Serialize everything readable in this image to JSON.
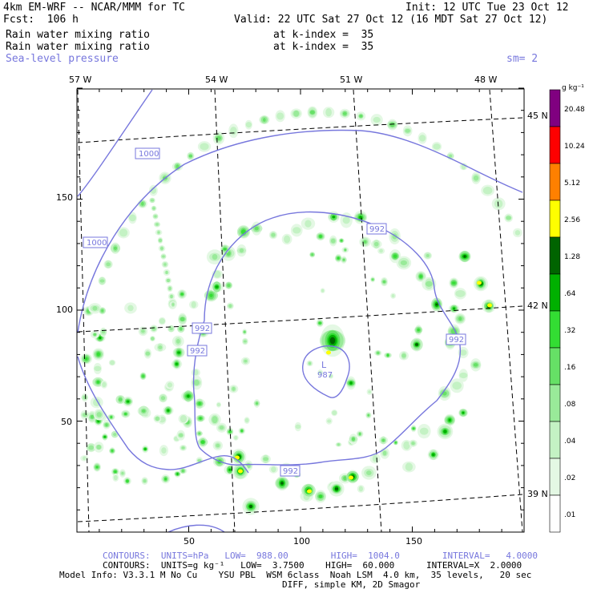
{
  "header": {
    "line1_left": "4km EM-WRF -- NCAR/MMM for TC",
    "line1_right": "Init: 12 UTC Tue 23 Oct 12",
    "line2_left": "Fcst:  106 h",
    "line2_right": "Valid: 22 UTC Sat 27 Oct 12 (16 MDT Sat 27 Oct 12)",
    "field1_name": "Rain water mixing ratio",
    "field1_level": "at k-index =  35",
    "field2_name": "Rain water mixing ratio",
    "field2_level": "at k-index =  35",
    "overlay_name": "Sea-level pressure",
    "overlay_smooth": "sm= 2"
  },
  "map": {
    "lon_labels": [
      "57 W",
      "54 W",
      "51 W",
      "48 W"
    ],
    "lat_labels": [
      "45 N",
      "42 N",
      "39 N"
    ],
    "x_ticks": [
      "50",
      "100",
      "150"
    ],
    "y_ticks": [
      "150",
      "100",
      "50"
    ],
    "contour_labels": [
      "1000",
      "1000",
      "992",
      "992",
      "992",
      "992",
      "992"
    ],
    "low_center": {
      "letter": "L",
      "value": "987"
    }
  },
  "colorbar": {
    "units": "g kg⁻¹",
    "levels": [
      {
        "label": "20.48",
        "color": "#800080"
      },
      {
        "label": "10.24",
        "color": "#ff0000"
      },
      {
        "label": "5.12",
        "color": "#ff8000"
      },
      {
        "label": "2.56",
        "color": "#ffff00"
      },
      {
        "label": "1.28",
        "color": "#006400"
      },
      {
        "label": ".64",
        "color": "#00b000"
      },
      {
        "label": ".32",
        "color": "#33dd33"
      },
      {
        "label": ".16",
        "color": "#66e066"
      },
      {
        "label": ".08",
        "color": "#99ea99"
      },
      {
        "label": ".04",
        "color": "#c4f2c4"
      },
      {
        "label": ".02",
        "color": "#e4f8e4"
      },
      {
        "label": ".01",
        "color": "#ffffff"
      }
    ]
  },
  "footer": {
    "line1": "CONTOURS:  UNITS=hPa   LOW=  988.00        HIGH=  1004.0        INTERVAL=   4.0000",
    "line2": "CONTOURS:  UNITS=g kg⁻¹   LOW=  3.7500    HIGH=  60.000      INTERVAL=X  2.0000",
    "line3": "Model Info: V3.3.1 M No Cu    YSU PBL  WSM 6class  Noah LSM  4.0 km,  35 levels,   20 sec",
    "line4": "DIFF, simple KM, 2D Smagor"
  },
  "colors": {
    "contour": "#7777dd",
    "grid": "#000000"
  }
}
